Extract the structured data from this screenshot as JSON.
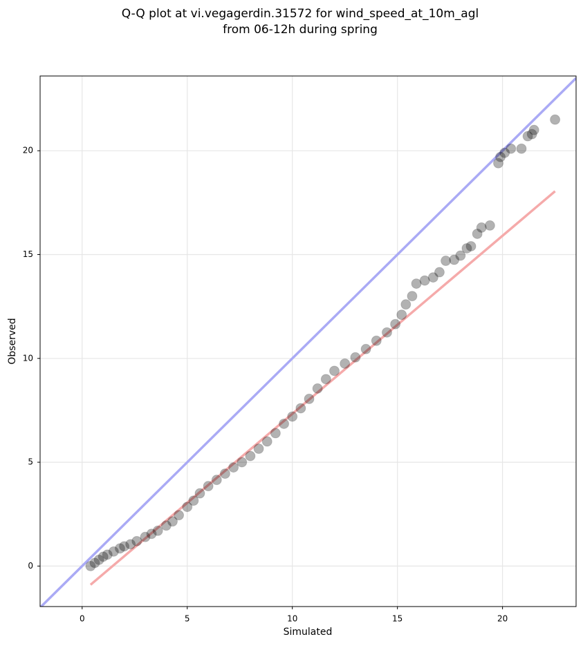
{
  "chart_data": {
    "type": "scatter",
    "title": [
      "Q-Q plot at vi.vegagerdin.31572 for wind_speed_at_10m_agl",
      "from 06-12h during spring"
    ],
    "x_label": "Simulated",
    "y_label": "Observed",
    "xlim": [
      -2,
      23.5
    ],
    "ylim": [
      -1.95,
      23.6
    ],
    "xticks": [
      0,
      5,
      10,
      15,
      20
    ],
    "yticks": [
      0,
      5,
      10,
      15,
      20
    ],
    "grid": true,
    "series": [
      {
        "type": "line",
        "color": "#aaaaf5",
        "x": [
          -2,
          23.5
        ],
        "values": [
          -2,
          23.5
        ]
      },
      {
        "type": "line",
        "color": "#f5aaaa",
        "x": [
          0.4,
          22.5
        ],
        "values": [
          -0.9,
          18.05
        ]
      },
      {
        "type": "scatter",
        "color": "#000000",
        "x": [
          0.4,
          0.6,
          0.8,
          1.0,
          1.2,
          1.5,
          1.8,
          2.0,
          2.3,
          2.6,
          3.0,
          3.3,
          3.6,
          4.0,
          4.3,
          4.6,
          5.0,
          5.3,
          5.6,
          6.0,
          6.4,
          6.8,
          7.2,
          7.6,
          8.0,
          8.4,
          8.8,
          9.2,
          9.6,
          10.0,
          10.4,
          10.8,
          11.2,
          11.6,
          12.0,
          12.5,
          13.0,
          13.5,
          14.0,
          14.5,
          14.9,
          15.2,
          15.4,
          15.7,
          15.9,
          16.3,
          16.7,
          17.0,
          17.3,
          17.7,
          18.0,
          18.3,
          18.5,
          18.8,
          19.0,
          19.4,
          19.8,
          19.9,
          20.1,
          20.4,
          20.9,
          21.2,
          21.4,
          21.5,
          22.5
        ],
        "values": [
          0.0,
          0.15,
          0.3,
          0.45,
          0.55,
          0.7,
          0.85,
          0.95,
          1.05,
          1.2,
          1.4,
          1.55,
          1.7,
          1.95,
          2.15,
          2.45,
          2.85,
          3.15,
          3.5,
          3.85,
          4.15,
          4.45,
          4.75,
          5.0,
          5.3,
          5.65,
          6.0,
          6.4,
          6.85,
          7.2,
          7.6,
          8.05,
          8.55,
          9.0,
          9.4,
          9.75,
          10.05,
          10.45,
          10.85,
          11.25,
          11.65,
          12.1,
          12.6,
          13.0,
          13.6,
          13.75,
          13.9,
          14.15,
          14.7,
          14.75,
          14.95,
          15.3,
          15.4,
          16.0,
          16.3,
          16.4,
          19.4,
          19.7,
          19.9,
          20.1,
          20.1,
          20.7,
          20.8,
          21.0,
          21.5
        ]
      }
    ]
  }
}
